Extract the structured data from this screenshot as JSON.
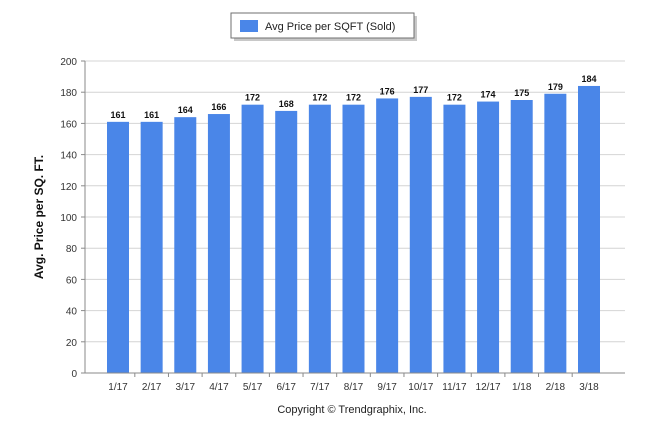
{
  "chart_data": {
    "type": "bar",
    "categories": [
      "1/17",
      "2/17",
      "3/17",
      "4/17",
      "5/17",
      "6/17",
      "7/17",
      "8/17",
      "9/17",
      "10/17",
      "11/17",
      "12/17",
      "1/18",
      "2/18",
      "3/18"
    ],
    "series": [
      {
        "name": "Avg Price per SQFT (Sold)",
        "values": [
          161,
          161,
          164,
          166,
          172,
          168,
          172,
          172,
          176,
          177,
          172,
          174,
          175,
          179,
          184
        ],
        "color": "#4a86e8"
      }
    ],
    "ylabel": "Avg. Price per SQ. FT.",
    "xlabel": "",
    "ylim": [
      0,
      200
    ],
    "yticks": [
      0,
      20,
      40,
      60,
      80,
      100,
      120,
      140,
      160,
      180,
      200
    ],
    "grid": true,
    "legend": "top-center",
    "data_labels": true
  },
  "footer": "Copyright © Trendgraphix, Inc."
}
